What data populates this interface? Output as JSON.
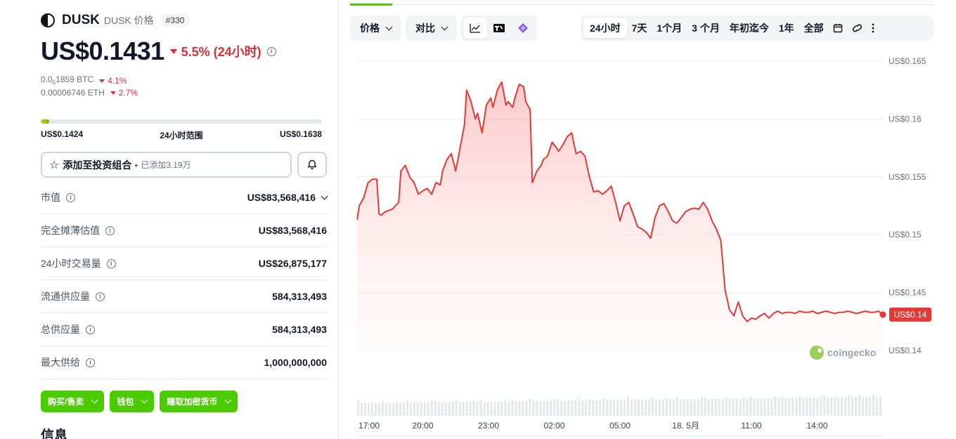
{
  "coin": {
    "symbol": "DUSK",
    "subtitle": "DUSK 价格",
    "rank": "#330",
    "price": "US$0.1431",
    "change": "5.5% (24小时)",
    "btc_price_prefix": "0.0",
    "btc_price_sub": "5",
    "btc_price_suffix": "1859 BTC",
    "btc_change": "4.1%",
    "eth_price": "0.00006746 ETH",
    "eth_change": "2.7%"
  },
  "range": {
    "low": "US$0.1424",
    "label": "24小时范围",
    "high": "US$0.1638",
    "fill_fraction": 0.03
  },
  "portfolio": {
    "label": "添加至投资组合",
    "separator": "•",
    "added": "已添加3.19万"
  },
  "stats": [
    {
      "label": "市值",
      "value": "US$83,568,416",
      "expandable": true
    },
    {
      "label": "完全摊薄估值",
      "value": "US$83,568,416"
    },
    {
      "label": "24小时交易量",
      "value": "US$26,875,177"
    },
    {
      "label": "流通供应量",
      "value": "584,313,493"
    },
    {
      "label": "总供应量",
      "value": "584,313,493"
    },
    {
      "label": "最大供给",
      "value": "1,000,000,000"
    }
  ],
  "actions": {
    "buy_sell": "购买/售卖",
    "wallet": "钱包",
    "earn": "赚取加密货币"
  },
  "section_title": "信息",
  "toolbar": {
    "price_label": "价格",
    "compare_label": "对比",
    "ranges": [
      "24小时",
      "7天",
      "1个月",
      "3 个月",
      "年初迄今",
      "1年",
      "全部"
    ],
    "active_range": "24小时"
  },
  "colors": {
    "accent_green": "#4bcc00",
    "negative_red": "#e02d3c",
    "line_red": "#e53935"
  },
  "watermark": "coingecko",
  "chart_data": {
    "type": "line",
    "x_ticks": [
      "17:00",
      "20:00",
      "23:00",
      "02:00",
      "05:00",
      "18. 5月",
      "11:00",
      "14:00"
    ],
    "y_ticks": [
      "US$0.165",
      "US$0.16",
      "US$0.155",
      "US$0.15",
      "US$0.145",
      "US$0.14"
    ],
    "ylim": [
      0.14,
      0.165
    ],
    "current_label": "US$0.14",
    "x_hours": [
      0,
      0.1,
      0.3,
      0.5,
      0.7,
      0.9,
      1.0,
      1.1,
      1.3,
      1.6,
      1.9,
      2.0,
      2.2,
      2.4,
      2.6,
      2.8,
      3.0,
      3.2,
      3.4,
      3.6,
      3.8,
      3.9,
      4.1,
      4.3,
      4.5,
      4.7,
      4.9,
      5.0,
      5.2,
      5.4,
      5.5,
      5.7,
      5.9,
      6.1,
      6.2,
      6.4,
      6.6,
      6.8,
      6.9,
      7.1,
      7.2,
      7.4,
      7.6,
      7.7,
      7.9,
      8.0,
      8.2,
      8.4,
      8.5,
      8.7,
      8.9,
      9.1,
      9.2,
      9.4,
      9.6,
      9.8,
      9.9,
      10.0,
      10.2,
      10.4,
      10.6,
      10.8,
      11.0,
      11.2,
      11.4,
      11.6,
      11.8,
      12.0,
      12.2,
      12.4,
      12.6,
      12.8,
      13.0,
      13.2,
      13.4,
      13.6,
      13.8,
      14.0,
      14.2,
      14.4,
      14.6,
      14.8,
      15.0,
      15.2,
      15.4,
      15.6,
      15.8,
      16.0,
      16.2,
      16.4,
      16.6,
      16.8,
      17.0,
      17.2,
      17.4,
      17.6,
      17.8,
      18.0,
      18.2,
      18.4,
      18.6,
      18.8,
      19.0,
      19.2,
      19.4,
      19.6,
      19.8,
      20.0,
      20.2,
      20.4,
      20.6,
      20.8,
      21.0,
      21.2,
      21.4,
      21.6,
      21.8,
      22.0,
      22.2,
      22.4,
      22.6,
      22.8,
      23.0,
      23.2,
      23.4,
      23.6,
      23.8,
      24.0
    ],
    "values": [
      0.1513,
      0.1525,
      0.1532,
      0.1545,
      0.1548,
      0.1548,
      0.1518,
      0.1517,
      0.152,
      0.1522,
      0.1528,
      0.1555,
      0.156,
      0.155,
      0.1545,
      0.1535,
      0.1538,
      0.154,
      0.1535,
      0.1545,
      0.1543,
      0.1555,
      0.1565,
      0.157,
      0.1555,
      0.1575,
      0.1595,
      0.1625,
      0.1615,
      0.16,
      0.1605,
      0.1588,
      0.1612,
      0.1618,
      0.161,
      0.1625,
      0.1632,
      0.1612,
      0.1615,
      0.161,
      0.1618,
      0.163,
      0.1628,
      0.1615,
      0.1608,
      0.1545,
      0.1555,
      0.156,
      0.1565,
      0.1568,
      0.158,
      0.1575,
      0.1572,
      0.1578,
      0.1585,
      0.1588,
      0.1578,
      0.157,
      0.1572,
      0.1568,
      0.155,
      0.1537,
      0.1538,
      0.1535,
      0.1538,
      0.1542,
      0.1528,
      0.1512,
      0.1525,
      0.1528,
      0.1518,
      0.1507,
      0.1505,
      0.1502,
      0.1497,
      0.1515,
      0.1525,
      0.1527,
      0.152,
      0.1512,
      0.151,
      0.1515,
      0.152,
      0.1522,
      0.1523,
      0.1522,
      0.1528,
      0.1522,
      0.1512,
      0.1505,
      0.1495,
      0.1452,
      0.1435,
      0.143,
      0.1442,
      0.143,
      0.1425,
      0.1428,
      0.1427,
      0.143,
      0.1432,
      0.1428,
      0.1432,
      0.1434,
      0.1432,
      0.1433,
      0.1433,
      0.1432,
      0.1434,
      0.1433,
      0.1433,
      0.1434,
      0.1432,
      0.1433,
      0.1434,
      0.1433,
      0.1432,
      0.1433,
      0.1433,
      0.1434,
      0.1433,
      0.1432,
      0.1433,
      0.1434,
      0.1433,
      0.1433,
      0.1434,
      0.1431
    ]
  }
}
